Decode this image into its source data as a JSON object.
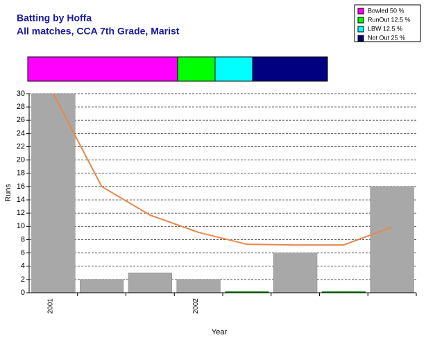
{
  "chart_data": [
    {
      "type": "stacked-hbar",
      "xlim": [
        0,
        100
      ],
      "series": [
        {
          "name": "Bowled 50 %",
          "color": "#ff00ff",
          "values": [
            50
          ]
        },
        {
          "name": "RunOut 12.5 %",
          "color": "#00ff00",
          "values": [
            12.5
          ]
        },
        {
          "name": "LBW 12.5 %",
          "color": "#00ffff",
          "values": [
            12.5
          ]
        },
        {
          "name": "Not Out 25 %",
          "color": "#000080",
          "values": [
            25
          ]
        }
      ]
    },
    {
      "type": "bar",
      "title": "Batting by Hoffa",
      "subtitle": "All matches, CCA 7th Grade, Marist",
      "x_label": "Year",
      "y_label": "Runs",
      "categories": [
        "2001",
        null,
        null,
        "2002",
        null,
        null,
        null,
        null
      ],
      "series": [
        {
          "type": "bar",
          "values": [
            30,
            2,
            3,
            2,
            0,
            6,
            0,
            16
          ],
          "colors": [
            "#a8a8a8",
            "#a8a8a8",
            "#a8a8a8",
            "#a8a8a8",
            "#00a000",
            "#a8a8a8",
            "#00a000",
            "#a8a8a8"
          ]
        },
        {
          "type": "line",
          "color": "#e8864a",
          "values": [
            30,
            16,
            11.7,
            9.1,
            7.3,
            7.2,
            7.2,
            9.9
          ]
        }
      ],
      "ylim": [
        0,
        30
      ],
      "yticks": [
        0,
        2,
        4,
        6,
        8,
        10,
        12,
        14,
        16,
        18,
        20,
        22,
        24,
        26,
        28,
        30
      ],
      "grid": true
    }
  ]
}
